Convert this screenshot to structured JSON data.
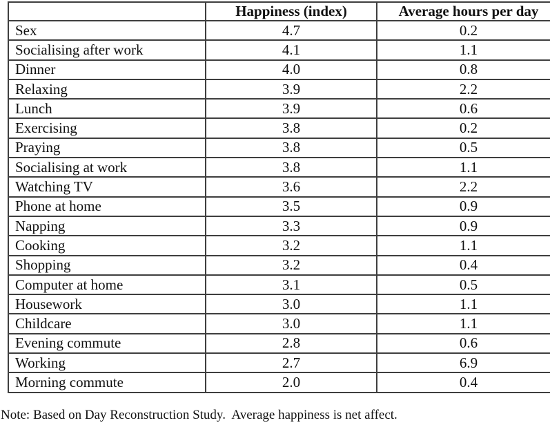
{
  "table": {
    "headers": [
      "",
      "Happiness (index)",
      "Average hours per day"
    ],
    "rows": [
      {
        "activity": "Sex",
        "happiness": "4.7",
        "hours": "0.2"
      },
      {
        "activity": "Socialising after work",
        "happiness": "4.1",
        "hours": "1.1"
      },
      {
        "activity": "Dinner",
        "happiness": "4.0",
        "hours": "0.8"
      },
      {
        "activity": "Relaxing",
        "happiness": "3.9",
        "hours": "2.2"
      },
      {
        "activity": "Lunch",
        "happiness": "3.9",
        "hours": "0.6"
      },
      {
        "activity": "Exercising",
        "happiness": "3.8",
        "hours": "0.2"
      },
      {
        "activity": "Praying",
        "happiness": "3.8",
        "hours": "0.5"
      },
      {
        "activity": "Socialising at work",
        "happiness": "3.8",
        "hours": "1.1"
      },
      {
        "activity": "Watching TV",
        "happiness": "3.6",
        "hours": "2.2"
      },
      {
        "activity": "Phone at home",
        "happiness": "3.5",
        "hours": "0.9"
      },
      {
        "activity": "Napping",
        "happiness": "3.3",
        "hours": "0.9"
      },
      {
        "activity": "Cooking",
        "happiness": "3.2",
        "hours": "1.1"
      },
      {
        "activity": "Shopping",
        "happiness": "3.2",
        "hours": "0.4"
      },
      {
        "activity": "Computer at home",
        "happiness": "3.1",
        "hours": "0.5"
      },
      {
        "activity": "Housework",
        "happiness": "3.0",
        "hours": "1.1"
      },
      {
        "activity": "Childcare",
        "happiness": "3.0",
        "hours": "1.1"
      },
      {
        "activity": "Evening commute",
        "happiness": "2.8",
        "hours": "0.6"
      },
      {
        "activity": "Working",
        "happiness": "2.7",
        "hours": "6.9"
      },
      {
        "activity": "Morning commute",
        "happiness": "2.0",
        "hours": "0.4"
      }
    ],
    "note": "Note: Based on Day Reconstruction Study.  Average happiness is net affect."
  },
  "colors": {
    "text": "#111111",
    "border": "#3e3e3e",
    "background": "#ffffff"
  }
}
